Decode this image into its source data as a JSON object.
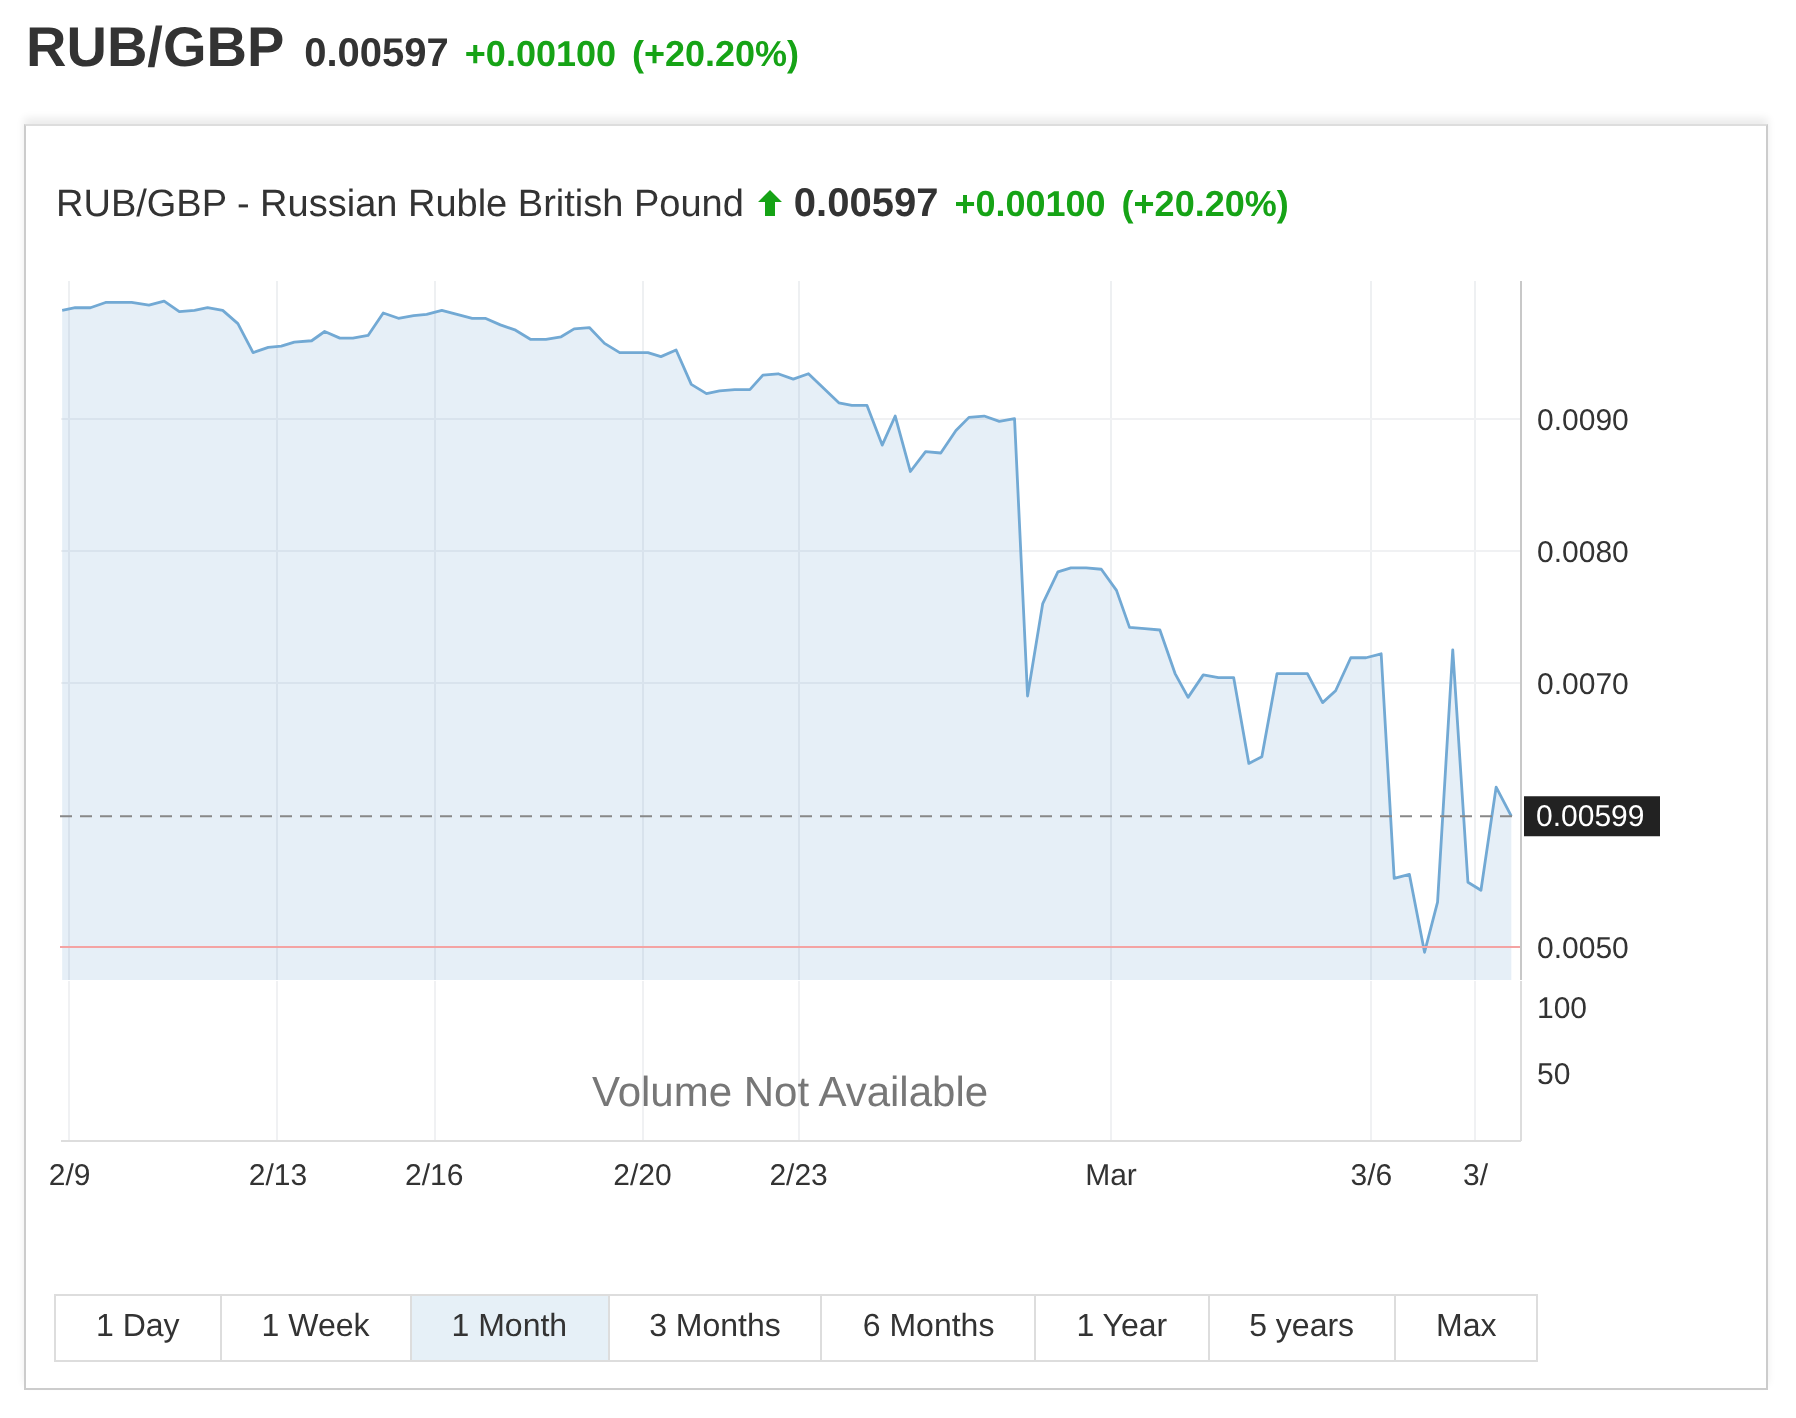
{
  "chart_data": [
    {
      "type": "area",
      "title": "RUB/GBP - Russian Ruble British Pound",
      "annotations": [
        "RUB/GBP",
        "0.00597",
        "+0.00100",
        "(+20.20%)",
        "0.00597",
        "+0.00100",
        "(+20.20%)",
        "1 Day",
        "1 Week",
        "1 Month",
        "3 Months",
        "6 Months",
        "1 Year",
        "5 years",
        "Max"
      ],
      "x": [
        "--02-08T21:00",
        "--02-09T03:00",
        "--02-09T10:00",
        "--02-09T17:00",
        "--02-09T22:00",
        "--02-10T05:00",
        "--02-10T13:00",
        "--02-10T20:00",
        "--02-11T03:00",
        "--02-11T10:00",
        "--02-11T16:00",
        "--02-11T23:00",
        "--02-12T06:00",
        "--02-12T13:00",
        "--02-12T20:00",
        "--02-13T02:00",
        "--02-13T08:00",
        "--02-13T16:00",
        "--02-13T22:00",
        "--02-14T05:00",
        "--02-14T11:00",
        "--02-14T18:00",
        "--02-15T01:00",
        "--02-15T08:00",
        "--02-15T15:00",
        "--02-15T21:00",
        "--02-16T04:00",
        "--02-16T11:00",
        "--02-16T18:00",
        "--02-17T00:00",
        "--02-17T07:00",
        "--02-17T14:00",
        "--02-17T21:00",
        "--02-18T04:00",
        "--02-18T11:00",
        "--02-18T17:00",
        "--02-19T00:00",
        "--02-19T07:00",
        "--02-19T14:00",
        "--02-19T21:00",
        "--02-20T03:00",
        "--02-20T09:00",
        "--02-20T16:00",
        "--02-20T23:00",
        "--02-21T06:00",
        "--02-21T12:00",
        "--02-21T19:00",
        "--02-22T02:00",
        "--02-22T08:00",
        "--02-22T15:00",
        "--02-22T22:00",
        "--02-23T05:00",
        "--02-23T12:00",
        "--02-23T19:00",
        "--02-24T01:00",
        "--02-24T08:00",
        "--02-24T15:00",
        "--02-24T21:00",
        "--02-25T04:00",
        "--02-25T11:00",
        "--02-25T18:00",
        "--02-26T01:00",
        "--02-26T07:00",
        "--02-26T14:00",
        "--02-26T21:00",
        "--02-27T04:00",
        "--02-27T10:00",
        "--02-27T17:00",
        "--02-28T00:00",
        "--02-28T06:00",
        "--02-28T13:00",
        "--02-28T20:00",
        "--03-01T03:00",
        "--03-01T09:00",
        "--03-01T16:00",
        "--03-01T23:00",
        "--03-02T06:00",
        "--03-02T12:00",
        "--03-02T19:00",
        "--03-03T02:00",
        "--03-03T09:00",
        "--03-03T16:00",
        "--03-03T22:00",
        "--03-04T05:00",
        "--03-04T12:00",
        "--03-04T19:00",
        "--03-05T02:00",
        "--03-05T08:00",
        "--03-05T15:00",
        "--03-05T22:00",
        "--03-06T05:00",
        "--03-06T11:00",
        "--03-06T18:00",
        "--03-07T01:00",
        "--03-07T07:00",
        "--03-07T14:00",
        "--03-07T21:00",
        "--03-08T03:00",
        "--03-08T10:00",
        "--03-08T17:00"
      ],
      "series": [
        {
          "color": "#72a9d4",
          "values": [
            0.00982,
            0.00984,
            0.00984,
            0.00988,
            0.00988,
            0.00988,
            0.00986,
            0.00989,
            0.00981,
            0.00982,
            0.00984,
            0.00982,
            0.00972,
            0.0095,
            0.00954,
            0.00955,
            0.00958,
            0.00959,
            0.00966,
            0.00961,
            0.00961,
            0.00963,
            0.0098,
            0.00976,
            0.00978,
            0.00979,
            0.00982,
            0.00979,
            0.00976,
            0.00976,
            0.00971,
            0.00967,
            0.0096,
            0.0096,
            0.00962,
            0.00968,
            0.00969,
            0.00957,
            0.0095,
            0.0095,
            0.0095,
            0.00947,
            0.00952,
            0.00926,
            0.00919,
            0.00921,
            0.00922,
            0.00922,
            0.00933,
            0.00934,
            0.0093,
            0.00934,
            0.00923,
            0.00912,
            0.0091,
            0.0091,
            0.0088,
            0.00902,
            0.0086,
            0.00875,
            0.00874,
            0.00891,
            0.00901,
            0.00902,
            0.00898,
            0.009,
            0.0069,
            0.0076,
            0.00784,
            0.00787,
            0.00787,
            0.00786,
            0.0077,
            0.00742,
            0.00741,
            0.0074,
            0.00707,
            0.00689,
            0.00706,
            0.00704,
            0.00704,
            0.00639,
            0.00644,
            0.00707,
            0.00707,
            0.00707,
            0.00685,
            0.00694,
            0.00719,
            0.00719,
            0.00722,
            0.00552,
            0.00555,
            0.00496,
            0.00534,
            0.00725,
            0.00549,
            0.00543,
            0.00621,
            0.00599
          ]
        }
      ],
      "xlim": [
        "--02-08T20:00",
        "--03-08T21:00"
      ],
      "xticks": [
        {
          "value": "--02-09",
          "label": "2/9"
        },
        {
          "value": "--02-13",
          "label": "2/13"
        },
        {
          "value": "--02-16",
          "label": "2/16"
        },
        {
          "value": "--02-20",
          "label": "2/20"
        },
        {
          "value": "--02-23",
          "label": "2/23"
        },
        {
          "value": "--03-01",
          "label": "Mar"
        },
        {
          "value": "--03-06",
          "label": "3/6"
        },
        {
          "value": "--03-08",
          "label": "3/"
        }
      ],
      "ylim": [
        0.00475,
        0.01005
      ],
      "yticks": [
        {
          "value": 0.005,
          "label": "0.0050"
        },
        {
          "value": 0.007,
          "label": "0.0070"
        },
        {
          "value": 0.008,
          "label": "0.0080"
        },
        {
          "value": 0.009,
          "label": "0.0090"
        }
      ],
      "ref_lines": [
        {
          "axis": "y",
          "value": 0.00599,
          "label": "0.00599",
          "color": "#888888",
          "line_style": "dashed"
        },
        {
          "axis": "y",
          "value": 0.005,
          "color": "#f4a3a3"
        }
      ],
      "grid": true,
      "tick_labels": "y"
    },
    {
      "type": "bar",
      "annotations": [
        "Volume Not Available"
      ],
      "grid": "x",
      "xlim": [
        "--02-08T20:00",
        "--03-08T21:00"
      ],
      "xticks": [
        {
          "value": "--02-09",
          "label": "2/9"
        },
        {
          "value": "--02-13",
          "label": "2/13"
        },
        {
          "value": "--02-16",
          "label": "2/16"
        },
        {
          "value": "--02-20",
          "label": "2/20"
        },
        {
          "value": "--02-23",
          "label": "2/23"
        },
        {
          "value": "--03-01",
          "label": "Mar"
        },
        {
          "value": "--03-06",
          "label": "3/6"
        },
        {
          "value": "--03-08",
          "label": "3/"
        }
      ],
      "ylim": [
        0,
        120
      ],
      "yticks": [
        50,
        100
      ]
    }
  ]
}
